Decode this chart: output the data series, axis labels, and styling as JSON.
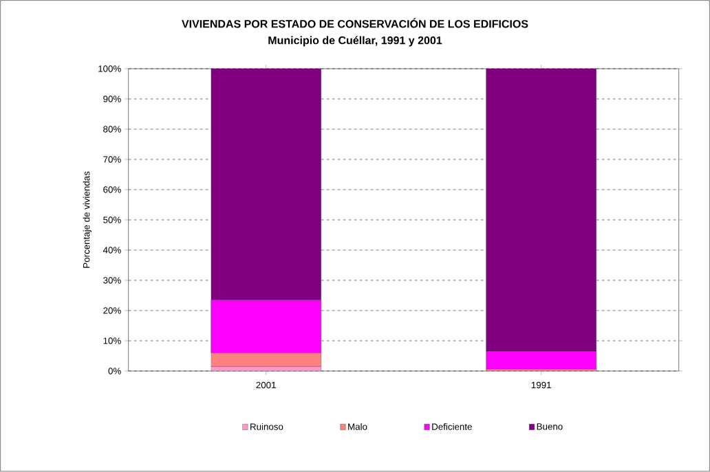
{
  "chart_data": {
    "type": "bar",
    "stacked": true,
    "title": "VIVIENDAS POR ESTADO DE CONSERVACIÓN DE LOS EDIFICIOS",
    "subtitle": "Municipio de Cuéllar, 1991 y 2001",
    "ylabel": "Porcentaje de viviendas",
    "categories": [
      "2001",
      "1991"
    ],
    "series": [
      {
        "name": "Ruinoso",
        "color": "#ff99cc",
        "values": [
          1.5,
          null
        ]
      },
      {
        "name": "Malo",
        "color": "#ff8080",
        "values": [
          4.5,
          0.6
        ]
      },
      {
        "name": "Deficiente",
        "color": "#ff00ff",
        "values": [
          17.5,
          6
        ]
      },
      {
        "name": "Bueno",
        "color": "#800080",
        "values": [
          76.5,
          93.4
        ]
      }
    ],
    "ylim": [
      0,
      100
    ],
    "yticks": [
      {
        "value": 0,
        "label": "0%"
      },
      {
        "value": 10,
        "label": "10%"
      },
      {
        "value": 20,
        "label": "20%"
      },
      {
        "value": 30,
        "label": "30%"
      },
      {
        "value": 40,
        "label": "40%"
      },
      {
        "value": 50,
        "label": "50%"
      },
      {
        "value": 60,
        "label": "60%"
      },
      {
        "value": 70,
        "label": "70%"
      },
      {
        "value": 80,
        "label": "80%"
      },
      {
        "value": 90,
        "label": "90%"
      },
      {
        "value": 100,
        "label": "100%"
      }
    ],
    "grid": "y",
    "legend": "bottom"
  }
}
